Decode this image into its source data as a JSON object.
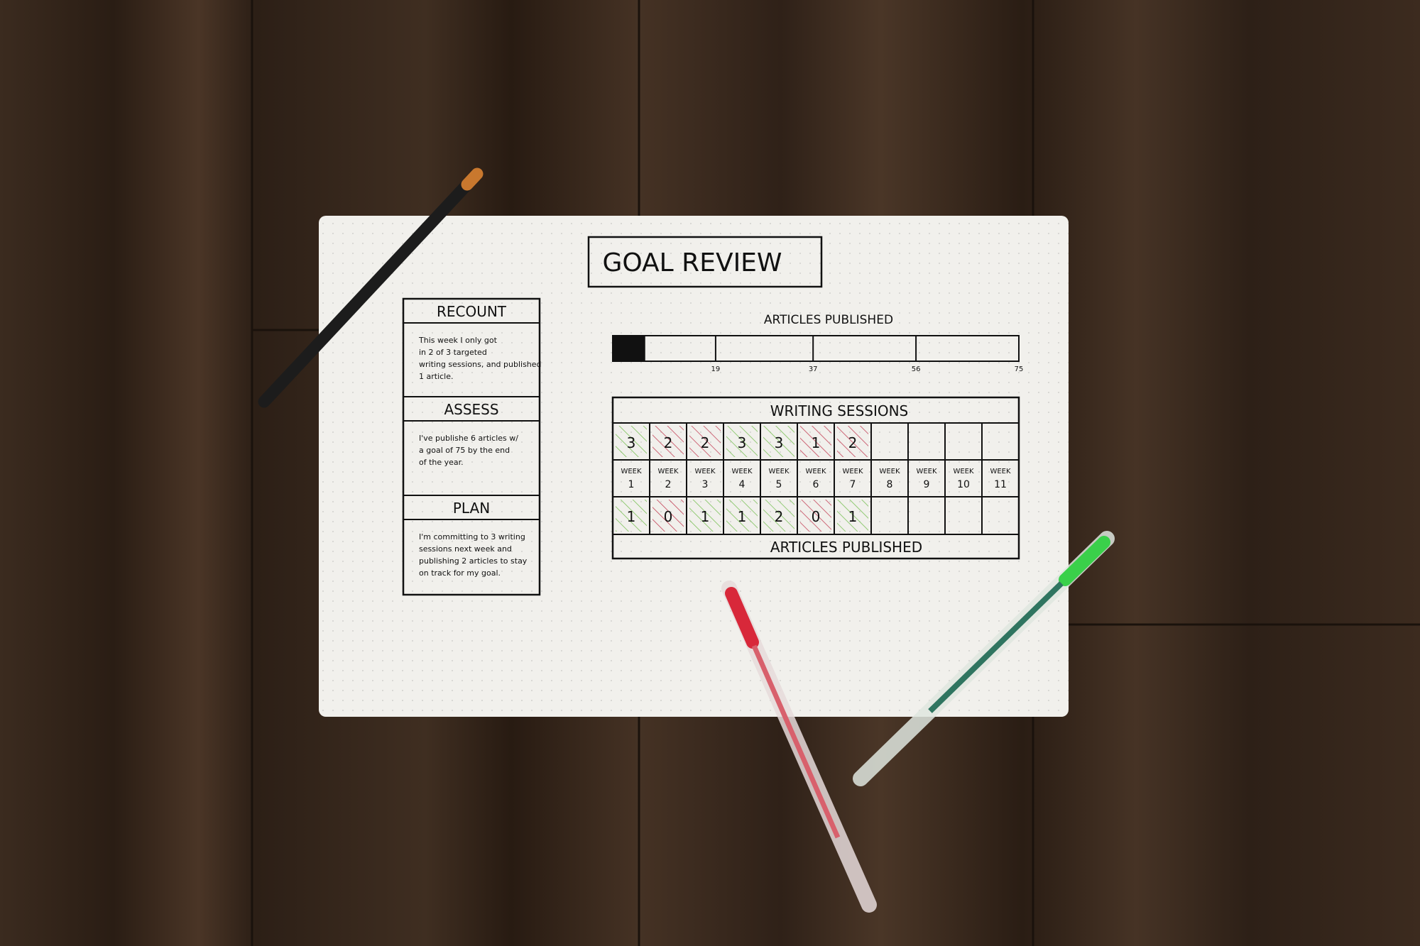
{
  "title": "GOAL REVIEW",
  "left_panel": {
    "sections": [
      {
        "heading": "RECOUNT",
        "lines": [
          "This week I only got",
          "in 2 of 3 targeted",
          "writing sessions, and published",
          "1 article."
        ]
      },
      {
        "heading": "ASSESS",
        "lines": [
          "I've publishe 6 articles w/",
          "a goal of 75 by the end",
          "of the year."
        ]
      },
      {
        "heading": "PLAN",
        "lines": [
          "I'm committing to 3 writing",
          "sessions next week and",
          "publishing 2 articles to stay",
          "on track for my goal."
        ]
      }
    ]
  },
  "progress": {
    "label": "ARTICLES PUBLISHED",
    "value": 6,
    "max": 75,
    "ticks": [
      "19",
      "37",
      "56",
      "75"
    ]
  },
  "table": {
    "header": "WRITING SESSIONS",
    "footer": "ARTICLES PUBLISHED",
    "week_word": "WEEK",
    "weeks": [
      "1",
      "2",
      "3",
      "4",
      "5",
      "6",
      "7",
      "8",
      "9",
      "10",
      "11"
    ],
    "sessions": [
      "3",
      "2",
      "2",
      "3",
      "3",
      "1",
      "2",
      "",
      "",
      "",
      ""
    ],
    "session_status": [
      "met",
      "missed",
      "missed",
      "met",
      "met",
      "missed",
      "missed",
      "",
      "",
      "",
      ""
    ],
    "articles": [
      "1",
      "0",
      "1",
      "1",
      "2",
      "0",
      "1",
      "",
      "",
      "",
      ""
    ],
    "article_status": [
      "met",
      "missed",
      "met",
      "met",
      "met",
      "missed",
      "met",
      "",
      "",
      "",
      ""
    ]
  },
  "colors": {
    "wood": "#3a2a1e",
    "paper": "#f1f0ec",
    "ink": "#111111",
    "met": "#7cc25a",
    "missed": "#c4455a",
    "red_pen": "#d8283a",
    "green_pen": "#3ad04a",
    "black_pen": "#1c1c1c",
    "pen_tip": "#c9782e"
  }
}
